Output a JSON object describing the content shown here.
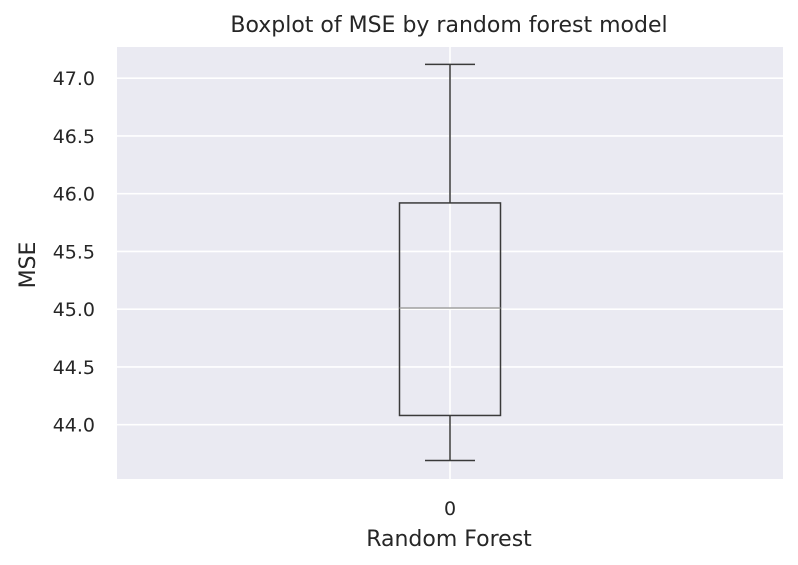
{
  "chart_data": {
    "type": "box",
    "title": "Boxplot of MSE by random forest model",
    "xlabel": "Random Forest",
    "ylabel": "MSE",
    "categories": [
      "0"
    ],
    "boxes": [
      {
        "category": "0",
        "whisker_low": 43.69,
        "q1": 44.08,
        "median": 45.01,
        "q3": 45.92,
        "whisker_high": 47.12
      }
    ],
    "ylim": [
      43.53,
      47.27
    ],
    "yticks": [
      44.0,
      44.5,
      45.0,
      45.5,
      46.0,
      46.5,
      47.0
    ],
    "yticklabels": [
      "44.0",
      "44.5",
      "45.0",
      "45.5",
      "46.0",
      "46.5",
      "47.0"
    ],
    "grid": true,
    "background_color": "#eaeaf2",
    "grid_color": "#ffffff",
    "box_color": "#3a3a3a",
    "median_color": "#a0a0a0"
  }
}
